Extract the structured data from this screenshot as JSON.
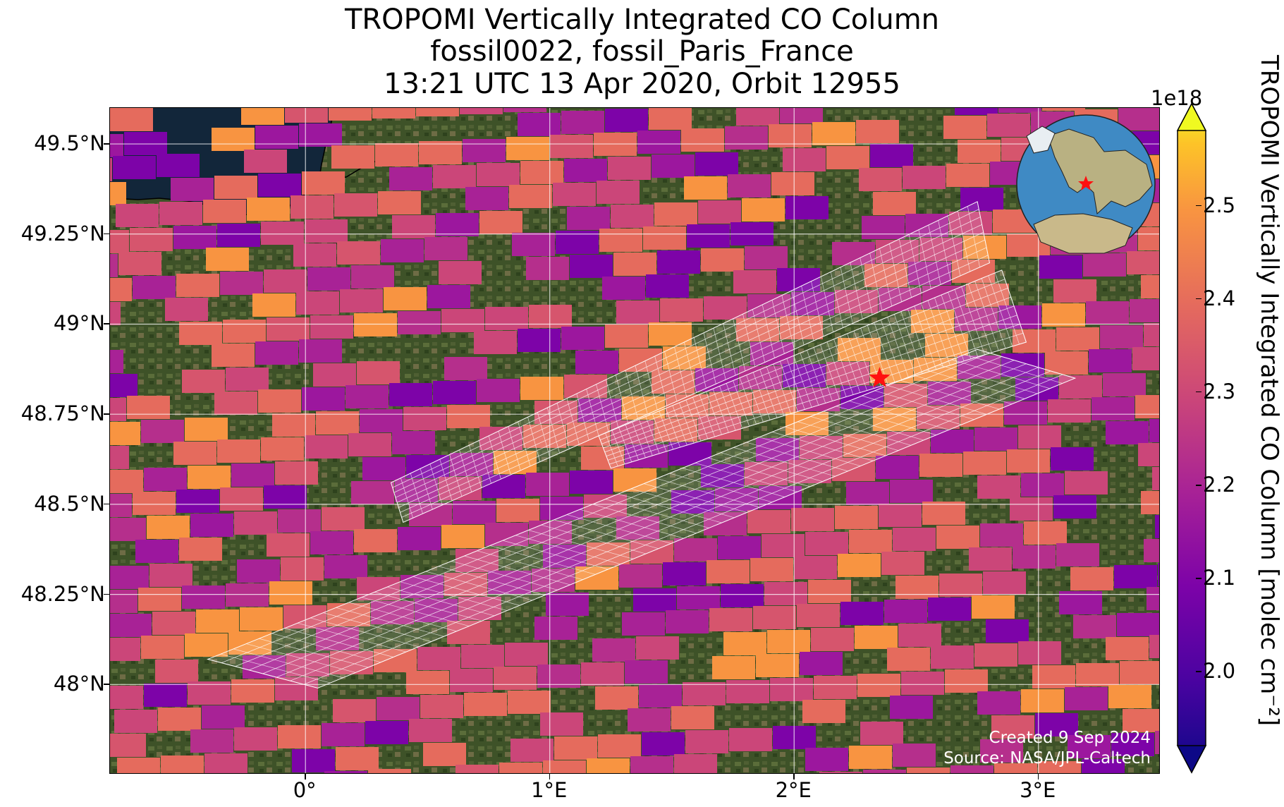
{
  "title": {
    "line1": "TROPOMI Vertically Integrated CO Column",
    "line2": "fossil0022, fossil_Paris_France",
    "line3": "13:21 UTC 13 Apr 2020, Orbit 12955"
  },
  "map": {
    "lon_range": [
      -0.8,
      3.5
    ],
    "lat_range": [
      47.75,
      49.6
    ],
    "lat_ticks": [
      {
        "value": 49.5,
        "label": "49.5°N"
      },
      {
        "value": 49.25,
        "label": "49.25°N"
      },
      {
        "value": 49.0,
        "label": "49°N"
      },
      {
        "value": 48.75,
        "label": "48.75°N"
      },
      {
        "value": 48.5,
        "label": "48.5°N"
      },
      {
        "value": 48.25,
        "label": "48.25°N"
      },
      {
        "value": 48.0,
        "label": "48°N"
      }
    ],
    "lon_ticks": [
      {
        "value": 0,
        "label": "0°"
      },
      {
        "value": 1,
        "label": "1°E"
      },
      {
        "value": 2,
        "label": "2°E"
      },
      {
        "value": 3,
        "label": "3°E"
      }
    ],
    "gridlines": true,
    "target_marker": {
      "name": "Paris",
      "lon": 2.35,
      "lat": 48.85,
      "symbol": "red-star"
    },
    "sea_color": "#12263a",
    "land_color": "#3e5228",
    "overlay": "white sounding-footprint grids (three swaths)",
    "credit_line1": "Created 9 Sep 2024",
    "credit_line2": "Source: NASA/JPL-Caltech",
    "inset_globe": {
      "center": "Europe",
      "marker": "red-star"
    }
  },
  "colorbar": {
    "label": "TROPOMI Vertically Integrated CO Column [molec cm⁻²]",
    "exponent": "1e18",
    "range": [
      1.92,
      2.58
    ],
    "ticks": [
      {
        "value": 2.5,
        "label": "2.5"
      },
      {
        "value": 2.4,
        "label": "2.4"
      },
      {
        "value": 2.3,
        "label": "2.3"
      },
      {
        "value": 2.2,
        "label": "2.2"
      },
      {
        "value": 2.1,
        "label": "2.1"
      },
      {
        "value": 2.0,
        "label": "2.0"
      }
    ],
    "colormap": "plasma",
    "extend": "both"
  }
}
